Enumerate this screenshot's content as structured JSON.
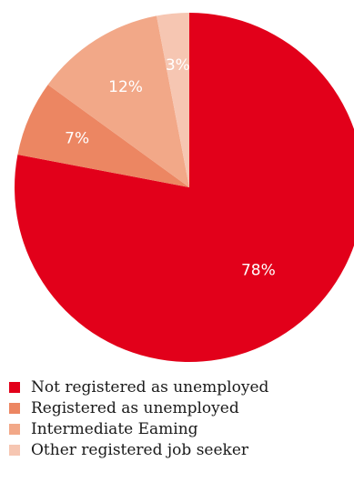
{
  "chart_data": {
    "type": "pie",
    "start_angle_deg": 0,
    "direction": "clockwise",
    "slices": [
      {
        "label": "Not registered as unemployed",
        "value": 78,
        "value_label": "78%",
        "color": "#e2001a"
      },
      {
        "label": "Registered as unemployed",
        "value": 7,
        "value_label": "7%",
        "color": "#ec8662"
      },
      {
        "label": "Intermediate Eaming",
        "value": 12,
        "value_label": "12%",
        "color": "#f2a888"
      },
      {
        "label": "Other registered job seeker",
        "value": 3,
        "value_label": "3%",
        "color": "#f6c6b2"
      }
    ],
    "legend_position": "bottom-left"
  }
}
